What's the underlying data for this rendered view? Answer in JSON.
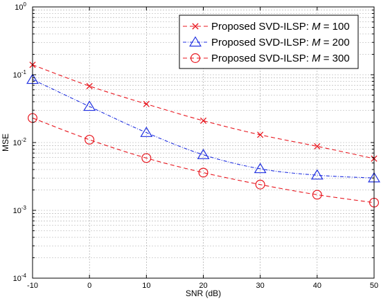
{
  "chart_data": {
    "type": "line",
    "xlabel": "SNR (dB)",
    "ylabel": "MSE",
    "xlim": [
      -10,
      50
    ],
    "ylim": [
      0.0001,
      1
    ],
    "yscale": "log",
    "grid": true,
    "legend_position": "top-right",
    "x_ticks": [
      "-10",
      "0",
      "10",
      "20",
      "30",
      "40",
      "50"
    ],
    "y_ticks": [
      {
        "base": "10",
        "exp": "0"
      },
      {
        "base": "10",
        "exp": "-1"
      },
      {
        "base": "10",
        "exp": "-2"
      },
      {
        "base": "10",
        "exp": "-3"
      },
      {
        "base": "10",
        "exp": "-4"
      }
    ],
    "x": [
      -10,
      0,
      10,
      20,
      30,
      40,
      50
    ],
    "series": [
      {
        "name": "Proposed SVD-ILSP: M = 100",
        "legend_prefix": "Proposed SVD-ILSP: ",
        "legend_var": "M",
        "legend_suffix": " = 100",
        "values": [
          0.14,
          0.068,
          0.037,
          0.021,
          0.013,
          0.0088,
          0.0058
        ],
        "color": "#e8141c",
        "marker": "x",
        "dash": "6 4"
      },
      {
        "name": "Proposed SVD-ILSP: M = 200",
        "legend_prefix": "Proposed SVD-ILSP: ",
        "legend_var": "M",
        "legend_suffix": " = 200",
        "values": [
          0.085,
          0.034,
          0.014,
          0.0066,
          0.0041,
          0.0033,
          0.003
        ],
        "color": "#1f2fe0",
        "marker": "triangle",
        "dash": "5 2 1 2"
      },
      {
        "name": "Proposed SVD-ILSP: M = 300",
        "legend_prefix": "Proposed SVD-ILSP: ",
        "legend_var": "M",
        "legend_suffix": " = 300",
        "values": [
          0.023,
          0.011,
          0.0059,
          0.0036,
          0.0024,
          0.0017,
          0.0013
        ],
        "color": "#e8141c",
        "marker": "circle",
        "dash": "6 4"
      }
    ]
  }
}
